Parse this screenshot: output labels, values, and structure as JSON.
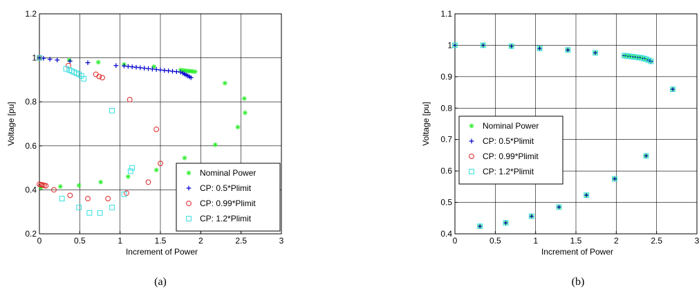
{
  "chart_data": [
    {
      "type": "scatter",
      "panel": "a",
      "caption": "(a)",
      "title": "",
      "xlabel": "Increment of Power",
      "ylabel": "Voltage [pu]",
      "xlim": [
        0,
        3
      ],
      "ylim": [
        0.2,
        1.2
      ],
      "xticks": [
        "0",
        "0.5",
        "1",
        "1.5",
        "2",
        "2.5",
        "3"
      ],
      "yticks": [
        "0.2",
        "0.4",
        "0.6",
        "0.8",
        "1",
        "1.2"
      ],
      "grid": true,
      "legend": "bottom-right",
      "series": [
        {
          "name": "Nominal Power",
          "marker": "star",
          "color": "#33ee33",
          "points": [
            [
              0.0,
              1.0
            ],
            [
              0.37,
              0.99
            ],
            [
              0.73,
              0.98
            ],
            [
              1.05,
              0.97
            ],
            [
              1.42,
              0.96
            ],
            [
              1.75,
              0.945
            ],
            [
              1.78,
              0.943
            ],
            [
              1.8,
              0.942
            ],
            [
              1.82,
              0.941
            ],
            [
              1.84,
              0.94
            ],
            [
              1.86,
              0.94
            ],
            [
              1.88,
              0.939
            ],
            [
              1.9,
              0.938
            ],
            [
              1.93,
              0.937
            ],
            [
              2.3,
              0.885
            ],
            [
              2.54,
              0.815
            ],
            [
              2.55,
              0.75
            ],
            [
              2.46,
              0.685
            ],
            [
              2.18,
              0.605
            ],
            [
              1.8,
              0.545
            ],
            [
              1.45,
              0.49
            ],
            [
              1.1,
              0.46
            ],
            [
              0.76,
              0.435
            ],
            [
              0.49,
              0.42
            ],
            [
              0.26,
              0.415
            ],
            [
              0.02,
              0.41
            ]
          ]
        },
        {
          "name": "CP: 0.5*Plimit",
          "marker": "plus",
          "color": "#0000cc",
          "points": [
            [
              0.0,
              1.0
            ],
            [
              0.05,
              0.998
            ],
            [
              0.13,
              0.994
            ],
            [
              0.22,
              0.99
            ],
            [
              0.38,
              0.985
            ],
            [
              0.6,
              0.978
            ],
            [
              0.95,
              0.965
            ],
            [
              1.05,
              0.963
            ],
            [
              1.1,
              0.961
            ],
            [
              1.15,
              0.959
            ],
            [
              1.2,
              0.957
            ],
            [
              1.25,
              0.955
            ],
            [
              1.3,
              0.953
            ],
            [
              1.35,
              0.951
            ],
            [
              1.4,
              0.949
            ],
            [
              1.45,
              0.947
            ],
            [
              1.5,
              0.945
            ],
            [
              1.55,
              0.943
            ],
            [
              1.6,
              0.941
            ],
            [
              1.65,
              0.939
            ],
            [
              1.7,
              0.937
            ],
            [
              1.75,
              0.935
            ],
            [
              1.78,
              0.93
            ],
            [
              1.8,
              0.926
            ],
            [
              1.82,
              0.922
            ],
            [
              1.84,
              0.918
            ],
            [
              1.86,
              0.914
            ],
            [
              1.88,
              0.91
            ]
          ]
        },
        {
          "name": "CP: 0.99*Plimit",
          "marker": "circle",
          "color": "#dd2222",
          "points": [
            [
              0.0,
              0.425
            ],
            [
              0.02,
              0.423
            ],
            [
              0.04,
              0.422
            ],
            [
              0.06,
              0.42
            ],
            [
              0.08,
              0.418
            ],
            [
              0.18,
              0.4
            ],
            [
              0.38,
              0.375
            ],
            [
              0.6,
              0.36
            ],
            [
              0.85,
              0.36
            ],
            [
              1.08,
              0.385
            ],
            [
              1.35,
              0.435
            ],
            [
              1.5,
              0.52
            ],
            [
              1.45,
              0.675
            ],
            [
              1.12,
              0.81
            ],
            [
              0.78,
              0.91
            ],
            [
              0.74,
              0.915
            ],
            [
              0.7,
              0.925
            ],
            [
              0.36,
              0.965
            ],
            [
              0.0,
              1.0
            ]
          ]
        },
        {
          "name": "CP: 1.2*Plimit",
          "marker": "square",
          "color": "#33dddd",
          "points": [
            [
              0.0,
              1.0
            ],
            [
              0.33,
              0.95
            ],
            [
              0.37,
              0.945
            ],
            [
              0.4,
              0.94
            ],
            [
              0.43,
              0.935
            ],
            [
              0.46,
              0.93
            ],
            [
              0.49,
              0.925
            ],
            [
              0.52,
              0.918
            ],
            [
              0.55,
              0.905
            ],
            [
              0.9,
              0.76
            ],
            [
              1.15,
              0.5
            ],
            [
              1.13,
              0.485
            ],
            [
              1.05,
              0.38
            ],
            [
              0.9,
              0.32
            ],
            [
              0.75,
              0.295
            ],
            [
              0.62,
              0.295
            ],
            [
              0.49,
              0.32
            ],
            [
              0.28,
              0.36
            ]
          ]
        }
      ]
    },
    {
      "type": "scatter",
      "panel": "b",
      "caption": "(b)",
      "title": "",
      "xlabel": "Increment of Power",
      "ylabel": "Voltage [pu]",
      "xlim": [
        0,
        3
      ],
      "ylim": [
        0.4,
        1.1
      ],
      "xticks": [
        "0",
        "0.5",
        "1",
        "1.5",
        "2",
        "2.5",
        "3"
      ],
      "yticks": [
        "0.4",
        "0.5",
        "0.6",
        "0.7",
        "0.8",
        "0.9",
        "1",
        "1.1"
      ],
      "grid": true,
      "legend": "center-left",
      "series": [
        {
          "name": "Nominal Power",
          "marker": "star",
          "color": "#33ee33",
          "points": [
            [
              0.0,
              1.0
            ],
            [
              0.35,
              1.0
            ],
            [
              0.7,
              0.997
            ],
            [
              1.05,
              0.99
            ],
            [
              1.4,
              0.985
            ],
            [
              1.74,
              0.976
            ],
            [
              2.1,
              0.967
            ],
            [
              2.13,
              0.966
            ],
            [
              2.16,
              0.965
            ],
            [
              2.19,
              0.964
            ],
            [
              2.22,
              0.963
            ],
            [
              2.25,
              0.962
            ],
            [
              2.28,
              0.961
            ],
            [
              2.31,
              0.96
            ],
            [
              2.34,
              0.958
            ],
            [
              2.37,
              0.956
            ],
            [
              2.4,
              0.953
            ],
            [
              2.43,
              0.949
            ],
            [
              2.7,
              0.86
            ],
            [
              2.37,
              0.648
            ],
            [
              1.98,
              0.575
            ],
            [
              1.63,
              0.523
            ],
            [
              1.29,
              0.485
            ],
            [
              0.95,
              0.456
            ],
            [
              0.63,
              0.435
            ],
            [
              0.31,
              0.424
            ]
          ]
        },
        {
          "name": "CP: 0.5*Plimit",
          "marker": "plus",
          "color": "#0000cc",
          "points": [
            [
              0.0,
              1.0
            ],
            [
              0.35,
              1.0
            ],
            [
              0.7,
              0.997
            ],
            [
              1.05,
              0.99
            ],
            [
              1.4,
              0.985
            ],
            [
              1.74,
              0.976
            ],
            [
              2.1,
              0.967
            ],
            [
              2.16,
              0.965
            ],
            [
              2.22,
              0.963
            ],
            [
              2.28,
              0.961
            ],
            [
              2.34,
              0.958
            ],
            [
              2.4,
              0.953
            ],
            [
              2.43,
              0.949
            ],
            [
              2.7,
              0.86
            ],
            [
              2.37,
              0.648
            ],
            [
              1.98,
              0.575
            ],
            [
              1.63,
              0.523
            ],
            [
              1.29,
              0.485
            ],
            [
              0.95,
              0.456
            ],
            [
              0.63,
              0.435
            ],
            [
              0.31,
              0.424
            ]
          ]
        },
        {
          "name": "CP: 0.99*Plimit",
          "marker": "circle",
          "color": "#dd2222",
          "points": []
        },
        {
          "name": "CP: 1.2*Plimit",
          "marker": "square",
          "color": "#33dddd",
          "points": [
            [
              0.0,
              1.0
            ],
            [
              0.35,
              1.0
            ],
            [
              0.7,
              0.997
            ],
            [
              1.05,
              0.99
            ],
            [
              1.4,
              0.985
            ],
            [
              1.74,
              0.976
            ],
            [
              2.1,
              0.967
            ],
            [
              2.13,
              0.966
            ],
            [
              2.16,
              0.965
            ],
            [
              2.19,
              0.964
            ],
            [
              2.22,
              0.963
            ],
            [
              2.25,
              0.962
            ],
            [
              2.28,
              0.961
            ],
            [
              2.31,
              0.96
            ],
            [
              2.34,
              0.958
            ],
            [
              2.37,
              0.956
            ],
            [
              2.4,
              0.953
            ],
            [
              2.43,
              0.949
            ],
            [
              2.7,
              0.86
            ],
            [
              2.37,
              0.648
            ],
            [
              1.98,
              0.575
            ],
            [
              1.63,
              0.523
            ],
            [
              1.29,
              0.485
            ],
            [
              0.95,
              0.456
            ],
            [
              0.63,
              0.435
            ],
            [
              0.31,
              0.424
            ]
          ]
        }
      ]
    }
  ]
}
